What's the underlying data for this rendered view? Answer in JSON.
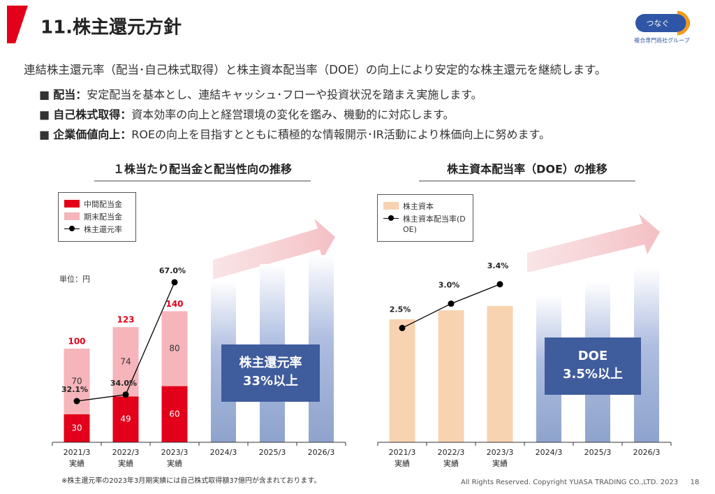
{
  "header": {
    "title": "11.株主還元方針",
    "logo_text": "つなぐ",
    "logo_caption": "複合専門商社グループ"
  },
  "intro": "連結株主還元率（配当･自己株式取得）と株主資本配当率（DOE）の向上により安定的な株主還元を継続します。",
  "bullets": [
    {
      "term": "配当：",
      "text": "安定配当を基本とし、連結キャッシュ･フローや投資状況を踏まえ実施します。"
    },
    {
      "term": "自己株式取得：",
      "text": "資本効率の向上と経営環境の変化を鑑み、機動的に対応します。"
    },
    {
      "term": "企業価値向上：",
      "text": "ROEの向上を目指すとともに積極的な情報開示･IR活動により株価向上に努めます。"
    }
  ],
  "chart_data": [
    {
      "type": "bar",
      "title": "１株当たり配当金と配当性向の推移",
      "unit": "単位：円",
      "categories": [
        "2021/3",
        "2022/3",
        "2023/3",
        "2024/3",
        "2025/3",
        "2026/3"
      ],
      "category_sublabels": [
        "実績",
        "実績",
        "実績",
        null,
        null,
        null
      ],
      "series": [
        {
          "name": "中間配当金",
          "color": "#e2001a",
          "values": [
            30,
            49,
            60,
            null,
            null,
            null
          ]
        },
        {
          "name": "期末配当金",
          "color": "#f5b5ba",
          "values": [
            70,
            74,
            80,
            null,
            null,
            null
          ]
        },
        {
          "name": "株主還元率",
          "color": "#000000",
          "axis": "y2",
          "values": [
            32.1,
            34.0,
            67.0,
            null,
            null,
            null
          ],
          "value_labels": [
            "32.1%",
            "34.0%",
            "67.0%",
            null,
            null,
            null
          ]
        }
      ],
      "totals": [
        100,
        123,
        140,
        null,
        null,
        null
      ],
      "data_labels": true,
      "annotation": [
        "株主還元率",
        "33%以上"
      ],
      "ylim": [
        0,
        200
      ],
      "y2lim": [
        20,
        75
      ]
    },
    {
      "type": "bar",
      "title": "株主資本配当率（DOE）の推移",
      "categories": [
        "2021/3",
        "2022/3",
        "2023/3",
        "2024/3",
        "2025/3",
        "2026/3"
      ],
      "category_sublabels": [
        "実績",
        "実績",
        "実績",
        null,
        null,
        null
      ],
      "series": [
        {
          "name": "株主資本",
          "color": "#f8d3b1",
          "values": [
            65.7,
            70.5,
            72.8,
            null,
            null,
            null
          ]
        },
        {
          "name": "株主資本配当率(DOE)",
          "color": "#000000",
          "axis": "y2",
          "values": [
            2.5,
            3.0,
            3.4,
            null,
            null,
            null
          ],
          "value_labels": [
            "2.5%",
            "3.0%",
            "3.4%",
            null,
            null,
            null
          ]
        }
      ],
      "data_labels": false,
      "annotation": [
        "DOE",
        "3.5%以上"
      ],
      "ylim": [
        0,
        100
      ],
      "y2lim": [
        0.15,
        4.0
      ]
    }
  ],
  "footnote": "※株主還元率の2023年3月期実績には自己株式取得額37億円が含まれております。",
  "footer": {
    "copyright": "All Rights Reserved. Copyright  YUASA TRADING CO.,LTD. 2023",
    "page": "18"
  }
}
